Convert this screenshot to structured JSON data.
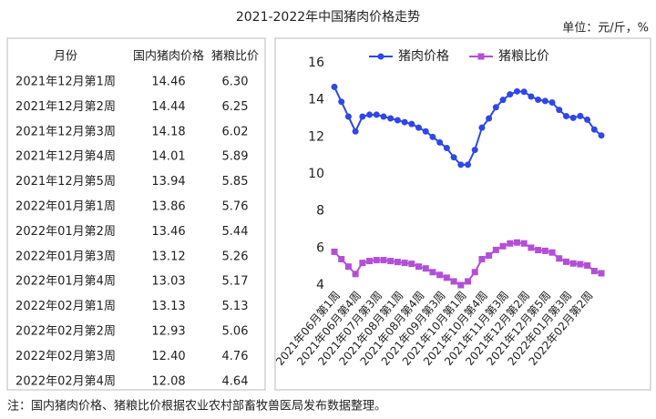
{
  "header": {
    "title": "2021-2022年中国猪肉价格走势",
    "unit": "单位：元/斤，%"
  },
  "table": {
    "columns": [
      "月份",
      "国内猪肉价格",
      "猪粮比价"
    ],
    "rows": [
      [
        "2021年12月第1周",
        "14.46",
        "6.30"
      ],
      [
        "2021年12月第2周",
        "14.44",
        "6.25"
      ],
      [
        "2021年12月第3周",
        "14.18",
        "6.02"
      ],
      [
        "2021年12月第4周",
        "14.01",
        "5.89"
      ],
      [
        "2021年12月第5周",
        "13.94",
        "5.85"
      ],
      [
        "2022年01月第1周",
        "13.86",
        "5.76"
      ],
      [
        "2022年01月第2周",
        "13.46",
        "5.44"
      ],
      [
        "2022年01月第3周",
        "13.12",
        "5.26"
      ],
      [
        "2022年01月第4周",
        "13.03",
        "5.17"
      ],
      [
        "2022年02月第1周",
        "13.13",
        "5.13"
      ],
      [
        "2022年02月第2周",
        "12.93",
        "5.06"
      ],
      [
        "2022年02月第3周",
        "12.40",
        "4.76"
      ],
      [
        "2022年02月第4周",
        "12.08",
        "4.64"
      ]
    ]
  },
  "chart_data": {
    "type": "line",
    "categories": [
      "2021年06月第1周",
      null,
      null,
      "2021年06月第4周",
      null,
      null,
      "2021年07月第3周",
      null,
      null,
      "2021年08月第1周",
      null,
      null,
      "2021年08月第4周",
      null,
      null,
      "2021年09月第3周",
      null,
      null,
      "2021年10月第1周",
      null,
      null,
      "2021年10月第4周",
      null,
      null,
      "2021年11月第3周",
      null,
      null,
      "2021年12月第2周",
      null,
      null,
      "2021年12月第5周",
      null,
      null,
      "2022年01月第3周",
      null,
      null,
      "2022年02月第2周",
      null,
      null
    ],
    "series": [
      {
        "name": "猪肉价格",
        "color": "#2f47e8",
        "marker": "circle",
        "values": [
          14.7,
          13.9,
          13.1,
          12.3,
          13.1,
          13.2,
          13.2,
          13.1,
          13.0,
          12.9,
          12.8,
          12.7,
          12.5,
          12.3,
          12.0,
          11.7,
          11.4,
          10.9,
          10.5,
          10.5,
          11.3,
          12.5,
          13.0,
          13.6,
          14.0,
          14.3,
          14.46,
          14.44,
          14.18,
          14.01,
          13.94,
          13.86,
          13.46,
          13.12,
          13.03,
          13.13,
          12.93,
          12.4,
          12.08
        ]
      },
      {
        "name": "猪粮比价",
        "color": "#b34fd6",
        "marker": "square",
        "values": [
          5.8,
          5.4,
          5.0,
          4.6,
          5.2,
          5.3,
          5.35,
          5.35,
          5.3,
          5.25,
          5.2,
          5.15,
          5.0,
          4.9,
          4.7,
          4.55,
          4.4,
          4.2,
          4.0,
          4.2,
          4.7,
          5.4,
          5.6,
          5.9,
          6.1,
          6.25,
          6.3,
          6.25,
          6.02,
          5.89,
          5.85,
          5.76,
          5.44,
          5.26,
          5.17,
          5.13,
          5.06,
          4.76,
          4.64
        ]
      }
    ],
    "ylim": [
      4,
      16
    ],
    "yticks": [
      4,
      6,
      8,
      10,
      12,
      14,
      16
    ],
    "grid": false,
    "legend": "top"
  },
  "note": "注：国内猪肉价格、猪粮比价根据农业农村部畜牧兽医局发布数据整理。"
}
